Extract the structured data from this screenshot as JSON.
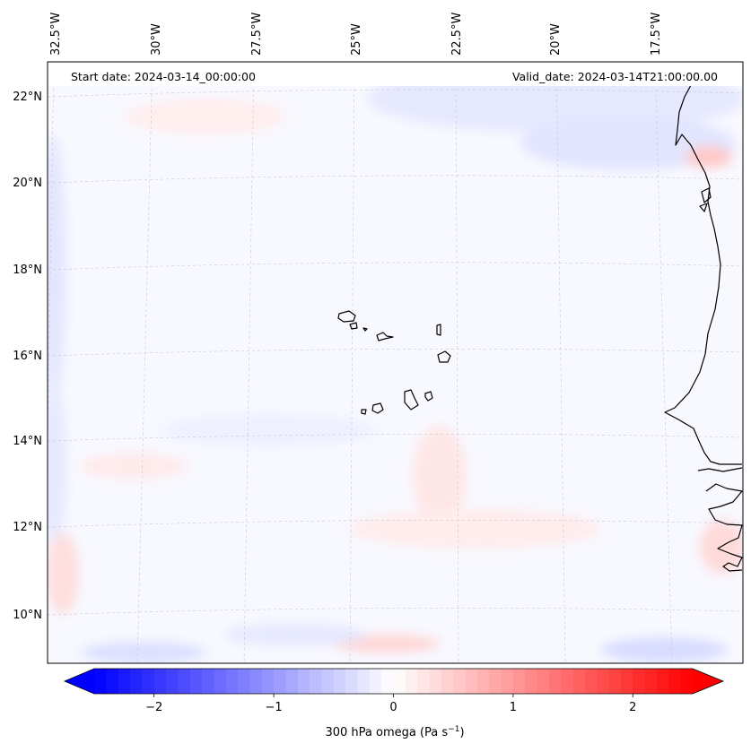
{
  "map": {
    "start_date": "Start date: 2024-03-14_00:00:00",
    "valid_date": "Valid_date: 2024-03-14T21:00:00.00",
    "lon_labels": [
      "32.5°W",
      "30°W",
      "27.5°W",
      "25°W",
      "22.5°W",
      "20°W",
      "17.5°W"
    ],
    "lat_labels": [
      "22°N",
      "20°N",
      "18°N",
      "16°N",
      "14°N",
      "12°N",
      "10°N"
    ],
    "field": "300 hPa omega",
    "region": "Cabo Verde / West African coast"
  },
  "colorbar": {
    "label": "300 hPa omega (Pa s",
    "label_sup": "−1",
    "label_end": ")",
    "ticks": [
      "−2",
      "−1",
      "0",
      "1",
      "2"
    ],
    "tick_values": [
      -2,
      -1,
      0,
      1,
      2
    ],
    "vmin": -2.5,
    "vmax": 2.5,
    "low_color": "#0000ff",
    "mid_color": "#ffffff",
    "high_color": "#ff0000",
    "extend": "both"
  }
}
